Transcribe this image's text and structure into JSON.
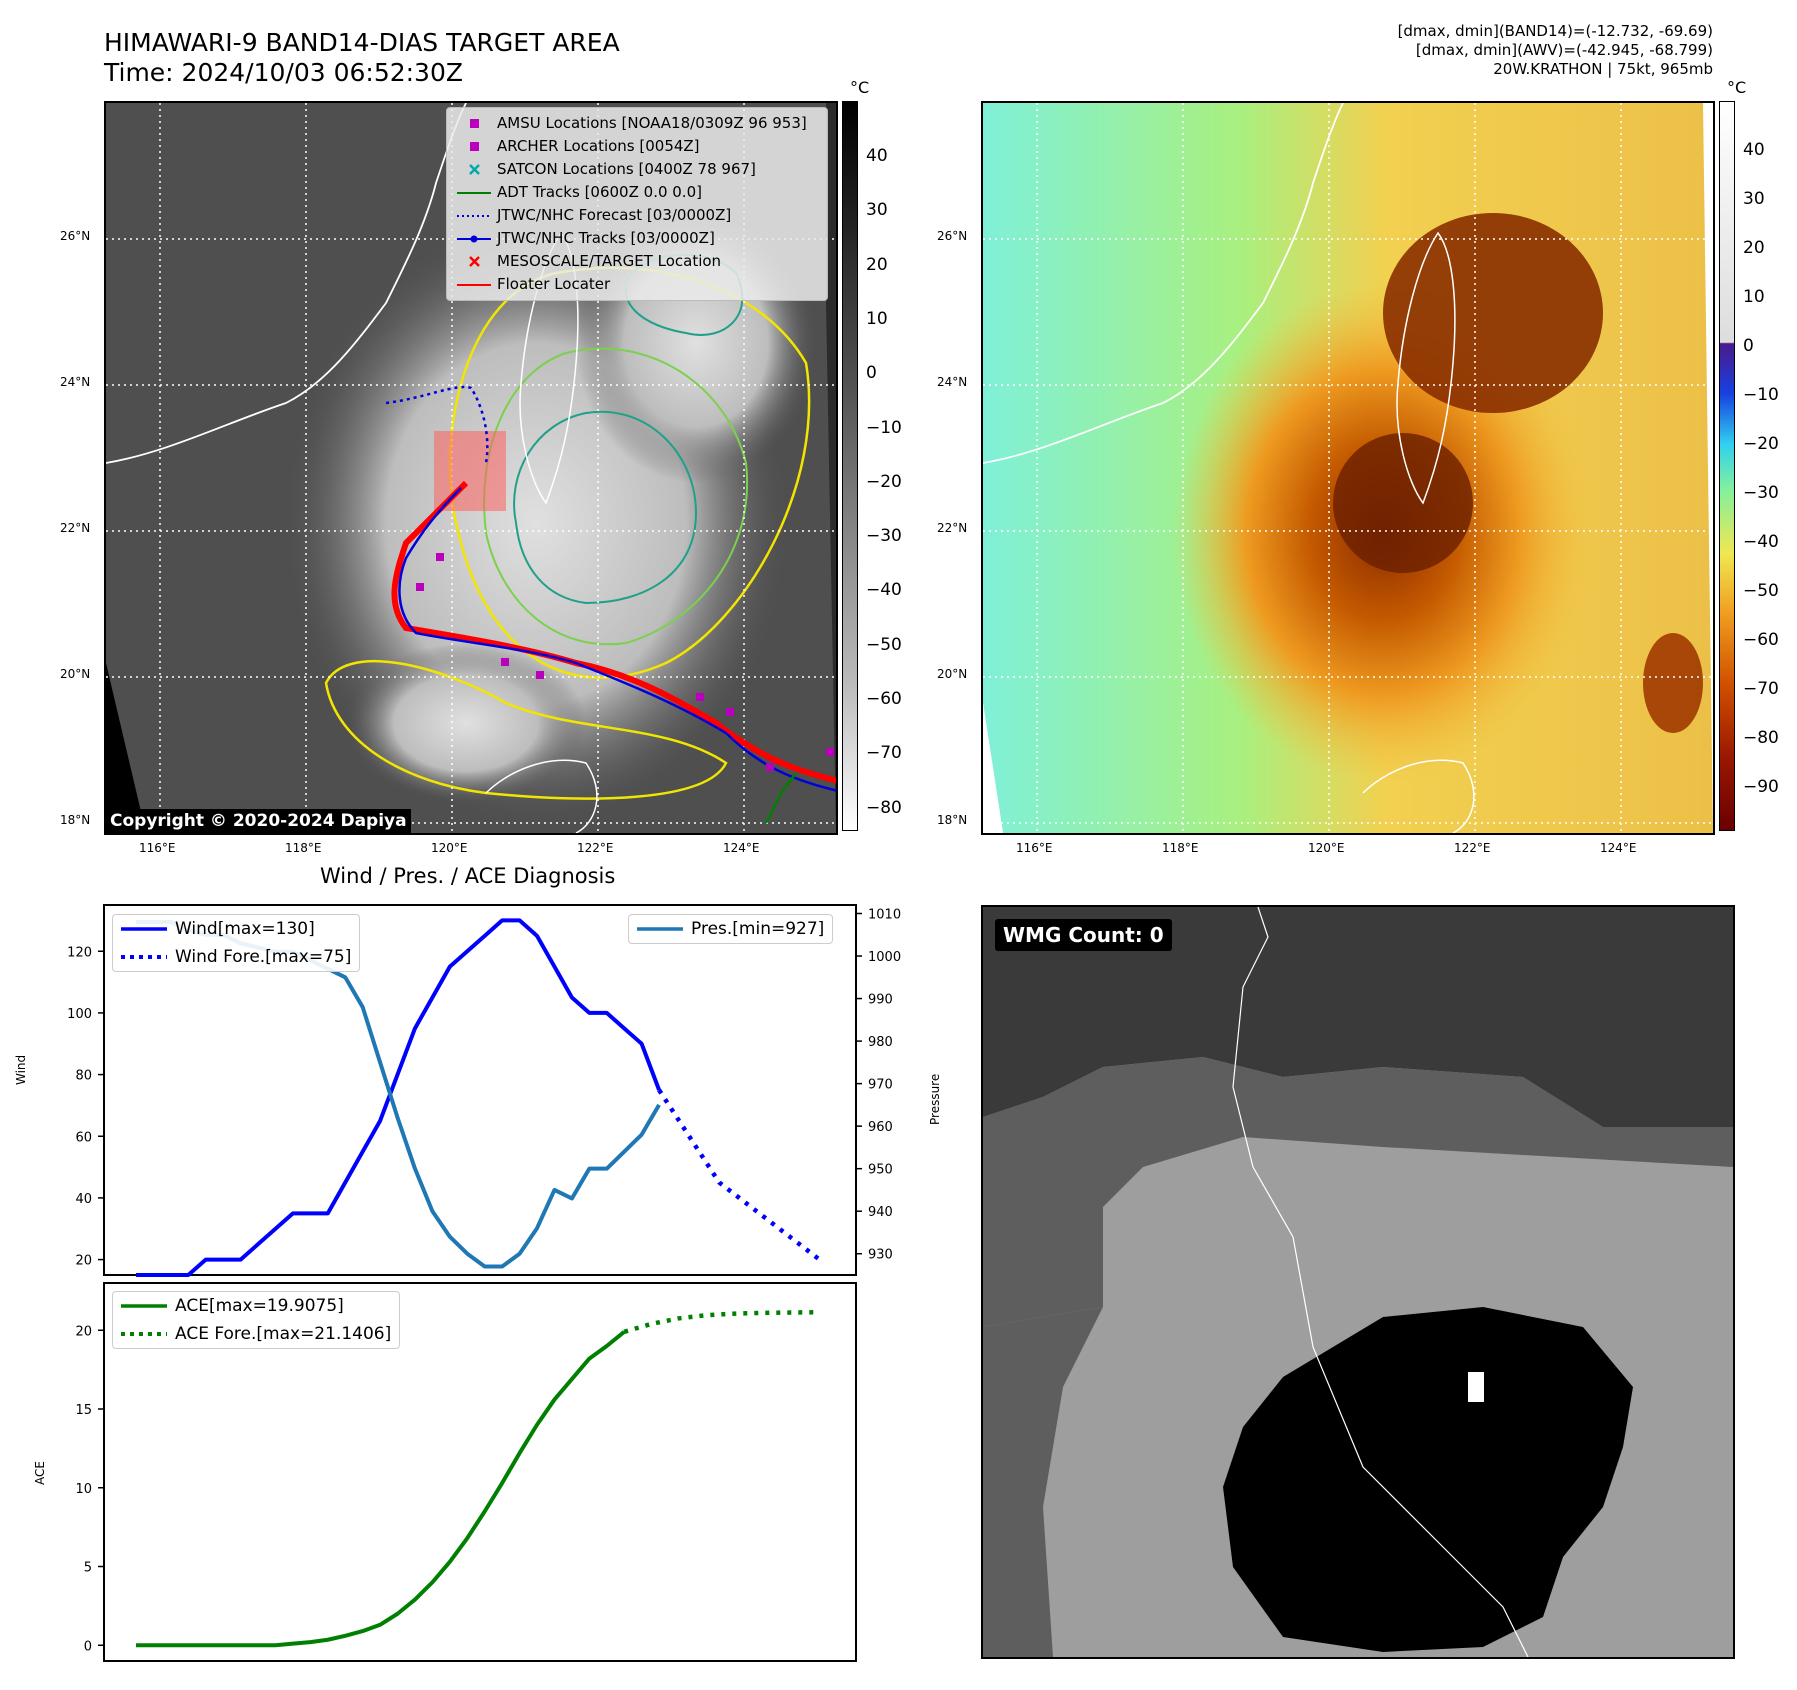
{
  "header": {
    "title_line1": "HIMAWARI-9 BAND14-DIAS TARGET AREA",
    "title_line2": "Time: 2024/10/03 06:52:30Z",
    "info_line1": "[dmax, dmin](BAND14)=(-12.732, -69.69)",
    "info_line2": "[dmax, dmin](AWV)=(-42.945, -68.799)",
    "info_line3": "20W.KRATHON | 75kt, 965mb"
  },
  "map_axes": {
    "lon_ticks": [
      "116°E",
      "118°E",
      "120°E",
      "122°E",
      "124°E"
    ],
    "lat_ticks": [
      "26°N",
      "24°N",
      "22°N",
      "20°N",
      "18°N"
    ]
  },
  "colorbar_left": {
    "unit": "°C",
    "ticks": [
      "40",
      "30",
      "20",
      "10",
      "0",
      "−10",
      "−20",
      "−30",
      "−40",
      "−50",
      "−60",
      "−70",
      "−80"
    ]
  },
  "colorbar_right": {
    "unit": "°C",
    "ticks": [
      "40",
      "30",
      "20",
      "10",
      "0",
      "−10",
      "−20",
      "−30",
      "−40",
      "−50",
      "−60",
      "−70",
      "−80",
      "−90"
    ]
  },
  "copyright": "Copyright © 2020-2024 Dapiya",
  "legend": {
    "items": [
      {
        "label": "AMSU Locations [NOAA18/0309Z 96 953]",
        "color": "#bb00bb",
        "marker": "square"
      },
      {
        "label": "ARCHER Locations [0054Z]",
        "color": "#bb00bb",
        "marker": "square"
      },
      {
        "label": "SATCON Locations [0400Z 78 967]",
        "color": "#00aaaa",
        "marker": "x"
      },
      {
        "label": "ADT Tracks [0600Z 0.0 0.0]",
        "color": "#008000",
        "marker": "line"
      },
      {
        "label": "JTWC/NHC Forecast [03/0000Z]",
        "color": "#0000dd",
        "marker": "dotted"
      },
      {
        "label": "JTWC/NHC Tracks [03/0000Z]",
        "color": "#0000dd",
        "marker": "line-dot"
      },
      {
        "label": "MESOSCALE/TARGET Location",
        "color": "#ff0000",
        "marker": "x"
      },
      {
        "label": "Floater Locater",
        "color": "#ff0000",
        "marker": "line"
      }
    ]
  },
  "wmg": {
    "label": "WMG Count: 0"
  },
  "chart_data": [
    {
      "type": "line",
      "title": "Wind / Pres. / ACE Diagnosis",
      "ylabel": "Wind",
      "y2label": "Pressure",
      "ylim": [
        15,
        135
      ],
      "y2lim": [
        925,
        1012
      ],
      "yticks": [
        20,
        40,
        60,
        80,
        100,
        120
      ],
      "y2ticks": [
        930,
        940,
        950,
        960,
        970,
        980,
        990,
        1000,
        1010
      ],
      "series": [
        {
          "name": "Wind[max=130]",
          "color": "#0000ff",
          "style": "solid",
          "values": [
            15,
            15,
            15,
            15,
            20,
            20,
            20,
            25,
            30,
            35,
            35,
            35,
            45,
            55,
            65,
            80,
            95,
            105,
            115,
            120,
            125,
            130,
            130,
            125,
            115,
            105,
            100,
            100,
            95,
            90,
            75
          ]
        },
        {
          "name": "Wind Fore.[max=75]",
          "color": "#0000ff",
          "style": "dotted",
          "values": [
            75,
            65,
            55,
            45,
            40,
            35,
            30,
            25,
            20
          ]
        },
        {
          "name": "Pres.[min=927]",
          "color": "#1f77b4",
          "style": "solid",
          "values": [
            1008,
            1008,
            1008,
            1006,
            1005,
            1005,
            1003,
            1002,
            1001,
            1001,
            999,
            997,
            995,
            988,
            975,
            962,
            950,
            940,
            934,
            930,
            927,
            927,
            930,
            936,
            945,
            943,
            950,
            950,
            954,
            958,
            965
          ]
        }
      ]
    },
    {
      "type": "line",
      "ylabel": "ACE",
      "ylim": [
        -1,
        23
      ],
      "yticks": [
        0,
        5,
        10,
        15,
        20
      ],
      "series": [
        {
          "name": "ACE[max=19.9075]",
          "color": "#008000",
          "style": "solid",
          "values": [
            0,
            0,
            0,
            0,
            0,
            0,
            0,
            0,
            0,
            0.1,
            0.2,
            0.35,
            0.6,
            0.9,
            1.3,
            2.0,
            2.9,
            4.0,
            5.3,
            6.8,
            8.5,
            10.3,
            12.2,
            14.0,
            15.6,
            16.9,
            18.2,
            19.0,
            19.9
          ]
        },
        {
          "name": "ACE Fore.[max=21.1406]",
          "color": "#008000",
          "style": "dotted",
          "values": [
            19.9,
            20.4,
            20.75,
            20.95,
            21.05,
            21.1,
            21.12,
            21.14
          ]
        }
      ]
    }
  ]
}
